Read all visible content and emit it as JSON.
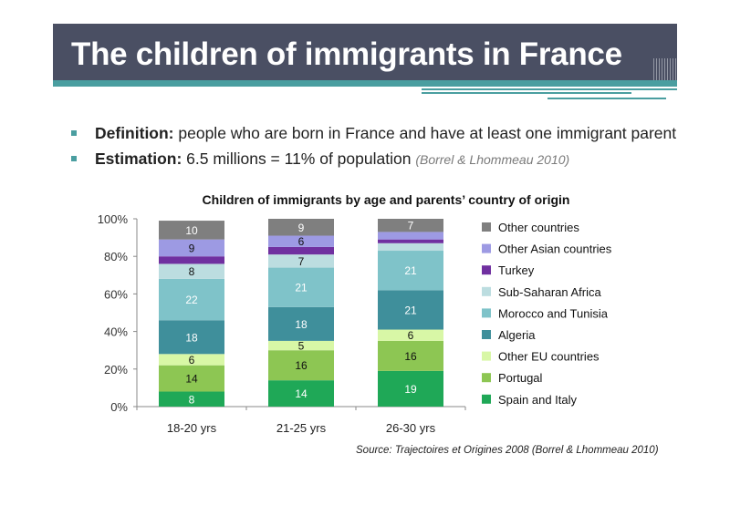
{
  "slide": {
    "title": "The children of immigrants in France",
    "bullets": [
      {
        "label": "Definition:",
        "text": " people who are born in France and have at least one immigrant parent"
      },
      {
        "label": "Estimation:",
        "text": " 6.5 millions = 11% of population ",
        "cite": "(Borrel & Lhommeau 2010)"
      }
    ],
    "source": "Source: Trajectoires et Origines 2008 (Borrel & Lhommeau 2010)"
  },
  "chart_data": {
    "type": "bar",
    "stacked": true,
    "title": "Children of immigrants by age and parents’ country of origin",
    "categories": [
      "18-20 yrs",
      "21-25 yrs",
      "26-30 yrs"
    ],
    "ylim": [
      0,
      100
    ],
    "yticks": [
      "0%",
      "20%",
      "40%",
      "60%",
      "80%",
      "100%"
    ],
    "series": [
      {
        "name": "Spain and Italy",
        "color": "#1fa857",
        "values": [
          8,
          14,
          19
        ],
        "labels": [
          "8",
          "14",
          "19"
        ]
      },
      {
        "name": "Portugal",
        "color": "#8dc653",
        "values": [
          14,
          16,
          16
        ],
        "labels": [
          "14",
          "16",
          "16"
        ]
      },
      {
        "name": "Other EU countries",
        "color": "#d8f7a6",
        "values": [
          6,
          5,
          6
        ],
        "labels": [
          "6",
          "5",
          "6"
        ]
      },
      {
        "name": "Algeria",
        "color": "#3f8f9b",
        "values": [
          18,
          18,
          21
        ],
        "labels": [
          "18",
          "18",
          "21"
        ]
      },
      {
        "name": "Morocco and Tunisia",
        "color": "#7fc3c9",
        "values": [
          22,
          21,
          21
        ],
        "labels": [
          "22",
          "21",
          "21"
        ]
      },
      {
        "name": "Sub-Saharan Africa",
        "color": "#bcdde0",
        "values": [
          8,
          7,
          4
        ],
        "labels": [
          "8",
          "7",
          ""
        ]
      },
      {
        "name": "Turkey",
        "color": "#7030a0",
        "values": [
          4,
          4,
          2
        ],
        "labels": [
          "",
          "",
          ""
        ]
      },
      {
        "name": "Other Asian countries",
        "color": "#9d9ae3",
        "values": [
          9,
          6,
          4
        ],
        "labels": [
          "9",
          "6",
          ""
        ]
      },
      {
        "name": "Other countries",
        "color": "#7f7f7f",
        "values": [
          10,
          9,
          7
        ],
        "labels": [
          "10",
          "9",
          "7"
        ]
      }
    ]
  }
}
